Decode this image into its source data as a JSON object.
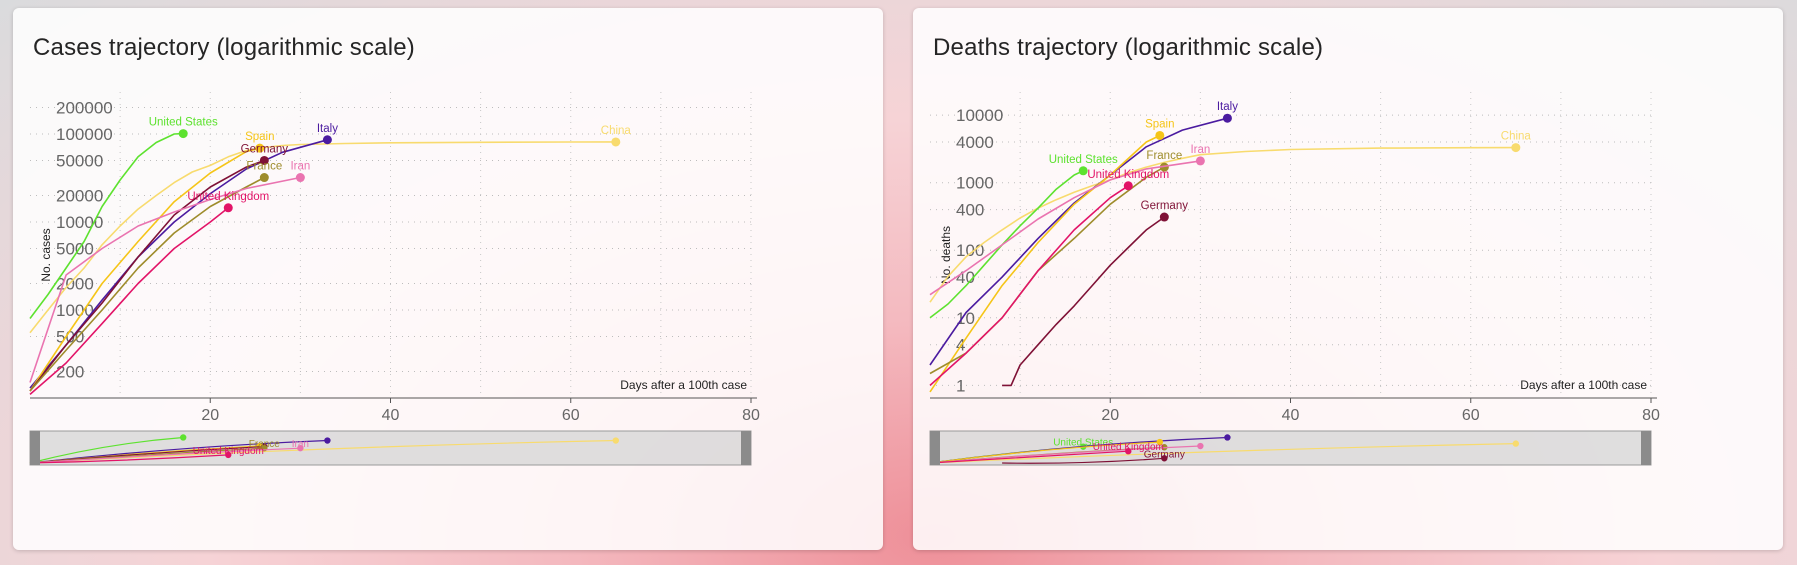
{
  "colors": {
    "United States": "#5de22f",
    "Italy": "#4b1ba0",
    "Spain": "#f5c518",
    "China": "#f8db6e",
    "Germany": "#7f1136",
    "France": "#9e8c2b",
    "Iran": "#ea74b0",
    "United Kingdom": "#e21468"
  },
  "chart_data": [
    {
      "type": "line",
      "title": "Cases trajectory (logarithmic scale)",
      "xlabel": "Days after a 100th case",
      "ylabel": "No. cases",
      "yscale": "log",
      "xlim": [
        0,
        80
      ],
      "ylim": [
        100,
        300000
      ],
      "xticks": [
        "20",
        "40",
        "60",
        "80"
      ],
      "yticks": [
        {
          "v": 200,
          "label": "200"
        },
        {
          "v": 500,
          "label": "500"
        },
        {
          "v": 1000,
          "label": "1000"
        },
        {
          "v": 2000,
          "label": "2000"
        },
        {
          "v": 5000,
          "label": "5000"
        },
        {
          "v": 10000,
          "label": "10000"
        },
        {
          "v": 20000,
          "label": "20000"
        },
        {
          "v": 50000,
          "label": "50000"
        },
        {
          "v": 100000,
          "label": "100000"
        },
        {
          "v": 200000,
          "label": "200000"
        }
      ],
      "grid": true,
      "series": [
        {
          "name": "China",
          "x": [
            0,
            2,
            4,
            6,
            8,
            10,
            12,
            14,
            16,
            18,
            20,
            22,
            24,
            26,
            28,
            30,
            35,
            40,
            50,
            60,
            65
          ],
          "y": [
            550,
            1000,
            1800,
            3000,
            5500,
            9000,
            14000,
            20000,
            28000,
            37000,
            44000,
            55000,
            65000,
            70000,
            74000,
            76000,
            78000,
            79500,
            80500,
            81000,
            81200
          ]
        },
        {
          "name": "United States",
          "x": [
            0,
            2,
            4,
            6,
            8,
            10,
            12,
            14,
            16,
            17
          ],
          "y": [
            800,
            1500,
            3000,
            6000,
            15000,
            30000,
            55000,
            80000,
            100000,
            101000
          ]
        },
        {
          "name": "Italy",
          "x": [
            0,
            4,
            8,
            12,
            16,
            20,
            24,
            28,
            33
          ],
          "y": [
            130,
            400,
            1300,
            4000,
            10000,
            21000,
            40000,
            62000,
            86000
          ]
        },
        {
          "name": "Spain",
          "x": [
            0,
            4,
            8,
            12,
            16,
            20,
            24,
            25.5
          ],
          "y": [
            120,
            500,
            2000,
            6000,
            17000,
            36000,
            63000,
            69000
          ]
        },
        {
          "name": "Germany",
          "x": [
            0,
            4,
            8,
            12,
            16,
            20,
            24,
            26
          ],
          "y": [
            120,
            400,
            1200,
            4000,
            12000,
            25000,
            42000,
            50000
          ]
        },
        {
          "name": "France",
          "x": [
            0,
            4,
            8,
            12,
            16,
            20,
            24,
            26
          ],
          "y": [
            120,
            350,
            1000,
            3000,
            7500,
            15000,
            25000,
            32000
          ]
        },
        {
          "name": "Iran",
          "x": [
            0,
            4,
            8,
            12,
            16,
            20,
            24,
            30
          ],
          "y": [
            150,
            2500,
            5000,
            9000,
            13000,
            18000,
            24000,
            32000
          ]
        },
        {
          "name": "United Kingdom",
          "x": [
            0,
            4,
            8,
            12,
            16,
            20,
            22
          ],
          "y": [
            110,
            250,
            700,
            2000,
            5000,
            10000,
            14500
          ]
        }
      ]
    },
    {
      "type": "line",
      "title": "Deaths trajectory (logarithmic scale)",
      "xlabel": "Days after a 100th case",
      "ylabel": "No. deaths",
      "yscale": "log",
      "xlim": [
        0,
        80
      ],
      "ylim": [
        0.65,
        22000
      ],
      "xticks": [
        "20",
        "40",
        "60",
        "80"
      ],
      "yticks": [
        {
          "v": 1,
          "label": "1"
        },
        {
          "v": 4,
          "label": "4"
        },
        {
          "v": 10,
          "label": "10"
        },
        {
          "v": 40,
          "label": "40"
        },
        {
          "v": 100,
          "label": "100"
        },
        {
          "v": 400,
          "label": "400"
        },
        {
          "v": 1000,
          "label": "1000"
        },
        {
          "v": 4000,
          "label": "4000"
        },
        {
          "v": 10000,
          "label": "10000"
        }
      ],
      "grid": true,
      "series": [
        {
          "name": "China",
          "x": [
            0,
            2,
            4,
            6,
            8,
            10,
            12,
            14,
            16,
            18,
            20,
            22,
            24,
            26,
            28,
            30,
            35,
            40,
            50,
            60,
            65
          ],
          "y": [
            17,
            41,
            80,
            130,
            200,
            300,
            420,
            560,
            720,
            900,
            1100,
            1400,
            1700,
            2000,
            2300,
            2600,
            2900,
            3100,
            3250,
            3300,
            3310
          ]
        },
        {
          "name": "United States",
          "x": [
            0,
            2,
            4,
            6,
            8,
            10,
            12,
            14,
            16,
            17
          ],
          "y": [
            10,
            16,
            30,
            60,
            120,
            230,
            420,
            800,
            1300,
            1500
          ]
        },
        {
          "name": "Italy",
          "x": [
            0,
            4,
            8,
            12,
            16,
            20,
            24,
            28,
            33
          ],
          "y": [
            2,
            12,
            40,
            150,
            500,
            1300,
            3400,
            6000,
            9000
          ]
        },
        {
          "name": "Spain",
          "x": [
            0,
            4,
            8,
            12,
            16,
            20,
            24,
            25.5
          ],
          "y": [
            0.8,
            5,
            30,
            130,
            480,
            1300,
            4000,
            5000
          ]
        },
        {
          "name": "Germany",
          "x": [
            8,
            9,
            10,
            12,
            14,
            16,
            18,
            20,
            22,
            24,
            26
          ],
          "y": [
            1,
            1,
            2,
            4,
            8,
            15,
            30,
            60,
            110,
            200,
            310
          ]
        },
        {
          "name": "France",
          "x": [
            0,
            4,
            8,
            12,
            16,
            20,
            24,
            26
          ],
          "y": [
            1.5,
            3,
            10,
            50,
            150,
            480,
            1200,
            1700
          ]
        },
        {
          "name": "Iran",
          "x": [
            0,
            4,
            8,
            12,
            16,
            20,
            24,
            30
          ],
          "y": [
            22,
            50,
            120,
            290,
            600,
            1100,
            1600,
            2100
          ]
        },
        {
          "name": "United Kingdom",
          "x": [
            0,
            4,
            8,
            12,
            16,
            20,
            22
          ],
          "y": [
            1,
            3,
            10,
            50,
            200,
            600,
            900
          ]
        }
      ]
    }
  ],
  "navigator": {
    "cases": [
      {
        "name": "United States",
        "label": "",
        "x": 17,
        "level": 0.9
      },
      {
        "name": "United Kingdom",
        "label": "United Kingdom",
        "x": 22,
        "level": 0.33
      },
      {
        "name": "France",
        "label": "France",
        "x": 26,
        "level": 0.55
      },
      {
        "name": "Germany",
        "label": "",
        "x": 26,
        "level": 0.6
      },
      {
        "name": "Iran",
        "label": "Iran",
        "x": 30,
        "level": 0.55
      },
      {
        "name": "Italy",
        "label": "",
        "x": 33,
        "level": 0.8
      },
      {
        "name": "Spain",
        "label": "",
        "x": 25,
        "level": 0.62
      },
      {
        "name": "China",
        "label": "",
        "x": 65,
        "level": 0.8
      }
    ],
    "deaths": [
      {
        "name": "United States",
        "label": "United States",
        "x": 17,
        "level": 0.6
      },
      {
        "name": "United Kingdom",
        "label": "United Kingdom",
        "x": 22,
        "level": 0.45
      },
      {
        "name": "Germany",
        "label": "Germany",
        "x": 26,
        "level": 0.22
      },
      {
        "name": "France",
        "label": "",
        "x": 26,
        "level": 0.58
      },
      {
        "name": "Iran",
        "label": "",
        "x": 30,
        "level": 0.62
      },
      {
        "name": "Italy",
        "label": "",
        "x": 33,
        "level": 0.9
      },
      {
        "name": "Spain",
        "label": "",
        "x": 25,
        "level": 0.75
      },
      {
        "name": "China",
        "label": "",
        "x": 65,
        "level": 0.7
      }
    ]
  }
}
